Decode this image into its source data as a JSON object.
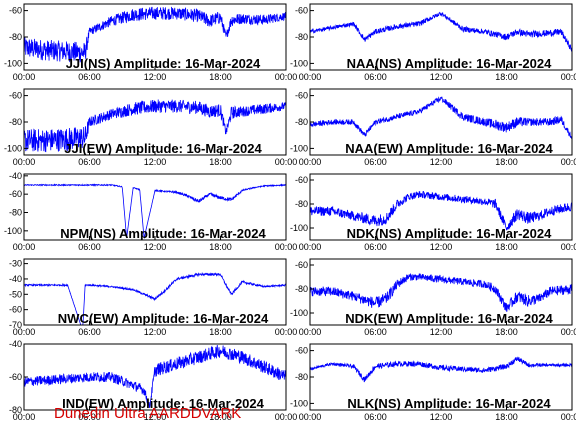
{
  "footer": {
    "credit": "Dunedin Ultra AARDDVARK",
    "color": "#d40000"
  },
  "series_color": "#0000ff",
  "x_ticks": [
    "00:00",
    "06:00",
    "12:00",
    "18:00",
    "00:00"
  ],
  "chart_data": [
    {
      "type": "line",
      "title": "JJI(NS) Amplitude: 16-Mar-2024",
      "col": 0,
      "row": 0,
      "x_unit": "hours UT",
      "xlim": [
        0,
        24
      ],
      "ylim": [
        -105,
        -55
      ],
      "yticks": [
        -100,
        -80,
        -60
      ],
      "series": [
        {
          "x": [
            0,
            2,
            4,
            5.6,
            6,
            8,
            10,
            12,
            14,
            16,
            17,
            18,
            18.5,
            19,
            20,
            22,
            24
          ],
          "y": [
            -88,
            -90,
            -91,
            -92,
            -76,
            -68,
            -63,
            -62,
            -62,
            -64,
            -68,
            -65,
            -80,
            -67,
            -66,
            -67,
            -64
          ],
          "noise": [
            8,
            8,
            8,
            8,
            3,
            4,
            5,
            5,
            5,
            5,
            5,
            5,
            3,
            5,
            4,
            4,
            3
          ]
        }
      ]
    },
    {
      "type": "line",
      "title": "JJI(EW) Amplitude: 16-Mar-2024",
      "col": 0,
      "row": 1,
      "x_unit": "hours UT",
      "xlim": [
        0,
        24
      ],
      "ylim": [
        -105,
        -55
      ],
      "yticks": [
        -100,
        -80,
        -60
      ],
      "series": [
        {
          "x": [
            0,
            2,
            4,
            5.6,
            6,
            8,
            10,
            12,
            14,
            16,
            17,
            18,
            18.5,
            19,
            20,
            22,
            24
          ],
          "y": [
            -94,
            -94,
            -93,
            -92,
            -80,
            -74,
            -70,
            -68,
            -68,
            -69,
            -72,
            -71,
            -88,
            -73,
            -72,
            -70,
            -68
          ],
          "noise": [
            9,
            9,
            9,
            9,
            4,
            4,
            5,
            5,
            5,
            5,
            5,
            5,
            3,
            5,
            4,
            4,
            3
          ]
        }
      ]
    },
    {
      "type": "line",
      "title": "NPM(NS) Amplitude: 16-Mar-2024",
      "col": 0,
      "row": 2,
      "x_unit": "hours UT",
      "xlim": [
        0,
        24
      ],
      "ylim": [
        -110,
        -38
      ],
      "yticks": [
        -100,
        -80,
        -60,
        -40
      ],
      "series": [
        {
          "x": [
            0,
            6,
            8,
            9,
            9.4,
            10,
            10.6,
            11,
            12,
            14,
            15,
            16,
            17,
            18,
            19,
            20,
            21,
            22,
            24
          ],
          "y": [
            -50,
            -50,
            -50,
            -52,
            -108,
            -53,
            -55,
            -108,
            -56,
            -58,
            -62,
            -68,
            -60,
            -64,
            -66,
            -56,
            -53,
            -51,
            -50
          ],
          "noise": [
            0.6,
            0.6,
            0.6,
            0.6,
            0,
            0.6,
            0.6,
            0,
            0.6,
            1,
            1.5,
            2,
            1.5,
            2,
            2,
            1,
            0.6,
            0.6,
            0.6
          ]
        }
      ]
    },
    {
      "type": "line",
      "title": "NWC(EW) Amplitude: 16-Mar-2024",
      "col": 0,
      "row": 3,
      "x_unit": "hours UT",
      "xlim": [
        0,
        24
      ],
      "ylim": [
        -70,
        -27
      ],
      "yticks": [
        -70,
        -60,
        -50,
        -40,
        -30
      ],
      "series": [
        {
          "x": [
            0,
            4,
            5.2,
            5.4,
            5.6,
            6,
            8,
            10,
            12,
            13,
            14,
            16,
            18,
            18.5,
            19,
            20,
            22,
            24
          ],
          "y": [
            -44,
            -44,
            -70,
            -70,
            -44,
            -44,
            -45,
            -47,
            -53,
            -47,
            -40,
            -37,
            -37,
            -44,
            -50,
            -42,
            -45,
            -44
          ],
          "noise": [
            0.5,
            0.5,
            0,
            0,
            0.5,
            0.5,
            0.5,
            0.5,
            0.8,
            0.8,
            0.8,
            0.8,
            0.8,
            0.8,
            0.8,
            0.8,
            0.5,
            0.5
          ]
        }
      ]
    },
    {
      "type": "line",
      "title": "IND(EW) Amplitude: 16-Mar-2024",
      "col": 0,
      "row": 4,
      "x_unit": "hours UT",
      "xlim": [
        0,
        24
      ],
      "ylim": [
        -80,
        -40
      ],
      "yticks": [
        -80,
        -60,
        -40
      ],
      "series": [
        {
          "x": [
            0,
            2,
            4,
            6,
            8,
            10,
            11,
            11.5,
            12,
            14,
            16,
            18,
            20,
            22,
            24
          ],
          "y": [
            -63,
            -62,
            -61,
            -60,
            -60,
            -65,
            -68,
            -78,
            -56,
            -52,
            -48,
            -44,
            -48,
            -54,
            -60
          ],
          "noise": [
            3,
            3,
            3,
            3,
            3,
            3,
            3,
            2,
            4,
            4,
            4,
            4,
            4,
            4,
            4
          ]
        }
      ]
    },
    {
      "type": "line",
      "title": "NAA(NS) Amplitude: 16-Mar-2024",
      "col": 1,
      "row": 0,
      "x_unit": "hours UT",
      "xlim": [
        0,
        24
      ],
      "ylim": [
        -105,
        -55
      ],
      "yticks": [
        -100,
        -80,
        -60
      ],
      "series": [
        {
          "x": [
            0,
            2,
            4,
            5,
            6,
            8,
            10,
            12,
            14,
            16,
            18,
            19,
            20,
            22,
            23,
            24
          ],
          "y": [
            -76,
            -73,
            -70,
            -82,
            -76,
            -72,
            -70,
            -62,
            -74,
            -76,
            -80,
            -76,
            -78,
            -77,
            -76,
            -90
          ],
          "noise": [
            1.5,
            1.5,
            1.5,
            2,
            2,
            2,
            2,
            1.5,
            2,
            2,
            2.5,
            2.5,
            2.5,
            2.5,
            2.5,
            2
          ]
        }
      ]
    },
    {
      "type": "line",
      "title": "NAA(EW) Amplitude: 16-Mar-2024",
      "col": 1,
      "row": 1,
      "x_unit": "hours UT",
      "xlim": [
        0,
        24
      ],
      "ylim": [
        -105,
        -55
      ],
      "yticks": [
        -100,
        -80,
        -60
      ],
      "series": [
        {
          "x": [
            0,
            2,
            4,
            5,
            6,
            8,
            10,
            12,
            14,
            16,
            17,
            18,
            19,
            20,
            22,
            23,
            24
          ],
          "y": [
            -82,
            -80,
            -80,
            -90,
            -80,
            -76,
            -72,
            -62,
            -76,
            -80,
            -82,
            -84,
            -80,
            -80,
            -80,
            -78,
            -92
          ],
          "noise": [
            2,
            2,
            2,
            2,
            2,
            2,
            2,
            2,
            3,
            3,
            4,
            4,
            4,
            3,
            3,
            3,
            2
          ]
        }
      ]
    },
    {
      "type": "line",
      "title": "NDK(NS) Amplitude: 16-Mar-2024",
      "col": 1,
      "row": 2,
      "x_unit": "hours UT",
      "xlim": [
        0,
        24
      ],
      "ylim": [
        -110,
        -55
      ],
      "yticks": [
        -100,
        -80,
        -60
      ],
      "series": [
        {
          "x": [
            0,
            2,
            4,
            6,
            7,
            8,
            9,
            10,
            12,
            14,
            16,
            17,
            18,
            19,
            20,
            21,
            22,
            24
          ],
          "y": [
            -86,
            -86,
            -90,
            -94,
            -92,
            -80,
            -74,
            -72,
            -74,
            -76,
            -78,
            -80,
            -100,
            -88,
            -92,
            -90,
            -86,
            -82
          ],
          "noise": [
            4,
            4,
            4,
            5,
            5,
            4,
            3,
            3,
            3,
            3,
            3,
            4,
            4,
            5,
            5,
            4,
            4,
            4
          ]
        }
      ]
    },
    {
      "type": "line",
      "title": "NDK(EW) Amplitude: 16-Mar-2024",
      "col": 1,
      "row": 3,
      "x_unit": "hours UT",
      "xlim": [
        0,
        24
      ],
      "ylim": [
        -110,
        -55
      ],
      "yticks": [
        -100,
        -80,
        -60
      ],
      "series": [
        {
          "x": [
            0,
            2,
            4,
            6,
            7,
            8,
            9,
            10,
            12,
            14,
            16,
            17,
            18,
            19,
            20,
            21,
            22,
            24
          ],
          "y": [
            -82,
            -82,
            -86,
            -92,
            -88,
            -76,
            -70,
            -70,
            -72,
            -74,
            -76,
            -80,
            -96,
            -86,
            -90,
            -88,
            -82,
            -80
          ],
          "noise": [
            4,
            4,
            4,
            5,
            5,
            4,
            3,
            3,
            3,
            3,
            3,
            4,
            4,
            5,
            5,
            4,
            4,
            4
          ]
        }
      ]
    },
    {
      "type": "line",
      "title": "NLK(NS) Amplitude: 16-Mar-2024",
      "col": 1,
      "row": 4,
      "x_unit": "hours UT",
      "xlim": [
        0,
        24
      ],
      "ylim": [
        -105,
        -55
      ],
      "yticks": [
        -100,
        -80,
        -60
      ],
      "series": [
        {
          "x": [
            0,
            2,
            4,
            5,
            6,
            8,
            10,
            12,
            14,
            16,
            18,
            19,
            20,
            22,
            24
          ],
          "y": [
            -74,
            -70,
            -72,
            -82,
            -72,
            -70,
            -70,
            -73,
            -74,
            -75,
            -72,
            -66,
            -71,
            -71,
            -71
          ],
          "noise": [
            1,
            1,
            1.5,
            2,
            2,
            2,
            2,
            2,
            2,
            2,
            2,
            2,
            1.5,
            1,
            1
          ]
        }
      ]
    }
  ]
}
